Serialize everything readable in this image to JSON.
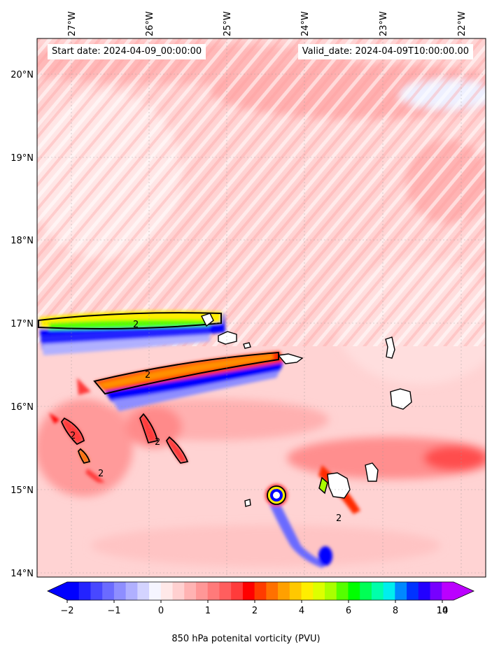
{
  "map": {
    "start_date_label": "Start date: 2024-04-09_00:00:00",
    "valid_date_label": "Valid_date: 2024-04-09T10:00:00.00",
    "lon_labels": [
      "27°W",
      "26°W",
      "25°W",
      "24°W",
      "23°W",
      "22°W"
    ],
    "lat_labels": [
      "20°N",
      "19°N",
      "18°N",
      "17°N",
      "16°N",
      "15°N",
      "14°N"
    ],
    "contour_label": "2",
    "colorbar": {
      "title": "850 hPa potenital vorticity (PVU)",
      "tick_labels": [
        "−2",
        "−1",
        "0",
        "1",
        "2",
        "4",
        "6",
        "8",
        "10",
        "14"
      ],
      "colors": [
        "#0000ff",
        "#2323ff",
        "#4848ff",
        "#6b6bff",
        "#8e8eff",
        "#b0b0ff",
        "#d3d3ff",
        "#f5f5ff",
        "#ffe8e8",
        "#ffd0d0",
        "#ffb3b3",
        "#ff9797",
        "#ff7a7a",
        "#ff5e5e",
        "#ff3b3b",
        "#ff0000",
        "#ff3b00",
        "#ff7000",
        "#ffa000",
        "#ffc800",
        "#ffee00",
        "#ddff00",
        "#aaff00",
        "#55ff00",
        "#00ff00",
        "#00ff55",
        "#00ffaa",
        "#00eeee",
        "#0088ff",
        "#0033ff",
        "#2200ff",
        "#7700ff",
        "#bb00ff"
      ]
    }
  }
}
